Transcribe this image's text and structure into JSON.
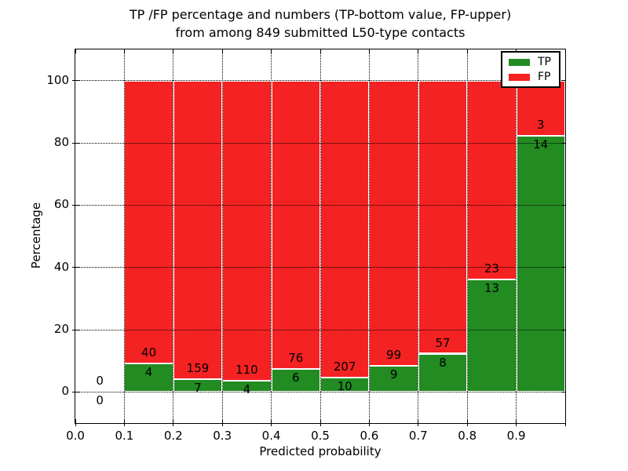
{
  "chart_data": {
    "type": "bar",
    "stacked": true,
    "title": {
      "line1": "TP /FP percentage and numbers (TP-bottom value, FP-upper)",
      "line2": "from among 849 submitted L50-type contacts"
    },
    "xlabel": "Predicted probability",
    "ylabel": "Percentage",
    "xlim": [
      0.0,
      1.0
    ],
    "ylim": [
      -10,
      110
    ],
    "xtick_values": [
      0.0,
      0.1,
      0.2,
      0.3,
      0.4,
      0.5,
      0.6,
      0.7,
      0.8,
      0.9
    ],
    "xtick_labels": [
      "0.0",
      "0.1",
      "0.2",
      "0.3",
      "0.4",
      "0.5",
      "0.6",
      "0.7",
      "0.8",
      "0.9"
    ],
    "ytick_values": [
      0,
      20,
      40,
      60,
      80,
      100
    ],
    "ytick_labels": [
      "0",
      "20",
      "40",
      "60",
      "80",
      "100"
    ],
    "grid": true,
    "grid_style": "dotted",
    "legend_position": "upper right",
    "colors": {
      "tp": "#228b22",
      "fp": "#f42222",
      "grid": "#000000",
      "background": "#ffffff"
    },
    "legend": [
      {
        "label": "TP",
        "color_key": "tp"
      },
      {
        "label": "FP",
        "color_key": "fp"
      }
    ],
    "bins": [
      {
        "x0": 0.0,
        "x1": 0.1,
        "tp": 0,
        "fp": 0,
        "tp_pct": 0.0,
        "fp_pct": 0.0
      },
      {
        "x0": 0.1,
        "x1": 0.2,
        "tp": 4,
        "fp": 40,
        "tp_pct": 9.09,
        "fp_pct": 90.91
      },
      {
        "x0": 0.2,
        "x1": 0.3,
        "tp": 7,
        "fp": 159,
        "tp_pct": 4.22,
        "fp_pct": 95.78
      },
      {
        "x0": 0.3,
        "x1": 0.4,
        "tp": 4,
        "fp": 110,
        "tp_pct": 3.51,
        "fp_pct": 96.49
      },
      {
        "x0": 0.4,
        "x1": 0.5,
        "tp": 6,
        "fp": 76,
        "tp_pct": 7.32,
        "fp_pct": 92.68
      },
      {
        "x0": 0.5,
        "x1": 0.6,
        "tp": 10,
        "fp": 207,
        "tp_pct": 4.61,
        "fp_pct": 95.39
      },
      {
        "x0": 0.6,
        "x1": 0.7,
        "tp": 9,
        "fp": 99,
        "tp_pct": 8.33,
        "fp_pct": 91.67
      },
      {
        "x0": 0.7,
        "x1": 0.8,
        "tp": 8,
        "fp": 57,
        "tp_pct": 12.31,
        "fp_pct": 87.69
      },
      {
        "x0": 0.8,
        "x1": 0.9,
        "tp": 13,
        "fp": 23,
        "tp_pct": 36.11,
        "fp_pct": 63.89
      },
      {
        "x0": 0.9,
        "x1": 1.0,
        "tp": 14,
        "fp": 3,
        "tp_pct": 82.35,
        "fp_pct": 17.65
      }
    ]
  }
}
